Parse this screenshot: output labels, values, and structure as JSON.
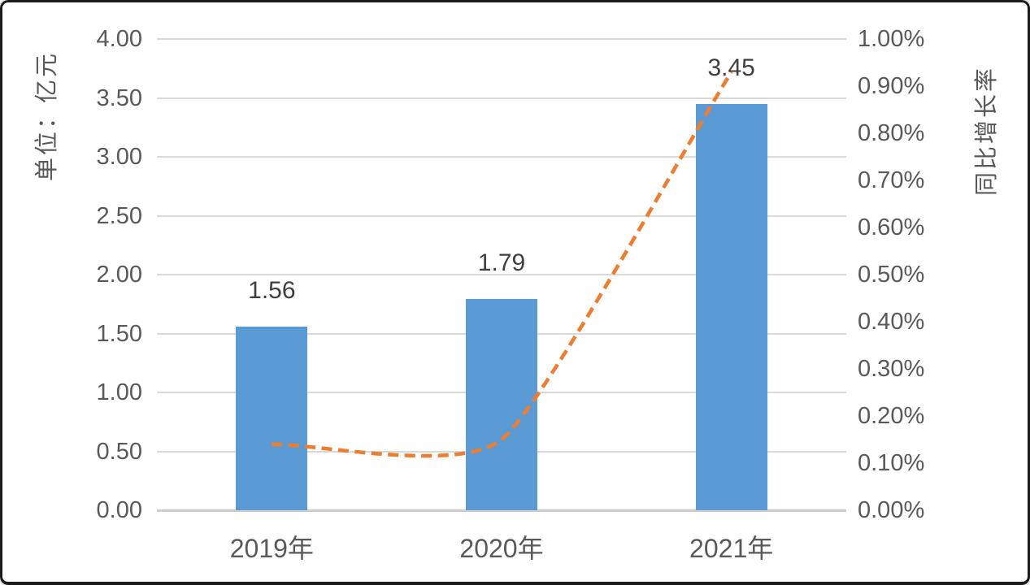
{
  "chart_data": {
    "type": "combo",
    "categories": [
      "2019年",
      "2020年",
      "2021年"
    ],
    "bar_series": {
      "axis": "left",
      "values": [
        1.56,
        1.79,
        3.45
      ],
      "data_labels": [
        "1.56",
        "1.79",
        "3.45"
      ],
      "color": "#5b9bd5"
    },
    "line_series": {
      "axis": "right",
      "values": [
        0.14,
        0.15,
        0.93
      ],
      "color": "#ed7d31",
      "style": "dashed",
      "smooth": true
    },
    "left_axis": {
      "title": "单位：亿元",
      "min": 0,
      "max": 4,
      "ticks": [
        "4.00",
        "3.50",
        "3.00",
        "2.50",
        "2.00",
        "1.50",
        "1.00",
        "0.50",
        "0.00"
      ]
    },
    "right_axis": {
      "title": "同比增长率",
      "min": 0,
      "max": 1,
      "ticks": [
        "1.00%",
        "0.90%",
        "0.80%",
        "0.70%",
        "0.60%",
        "0.50%",
        "0.40%",
        "0.30%",
        "0.20%",
        "0.10%",
        "0.00%"
      ]
    },
    "grid": true,
    "legend": "none",
    "colors": {
      "bar": "#5b9bd5",
      "line": "#ed7d31",
      "gridline": "#d9d9d9",
      "axis_text": "#595959",
      "data_label_text": "#3f3f3f",
      "frame_border": "#1b1b1b",
      "background": "#ffffff"
    }
  }
}
